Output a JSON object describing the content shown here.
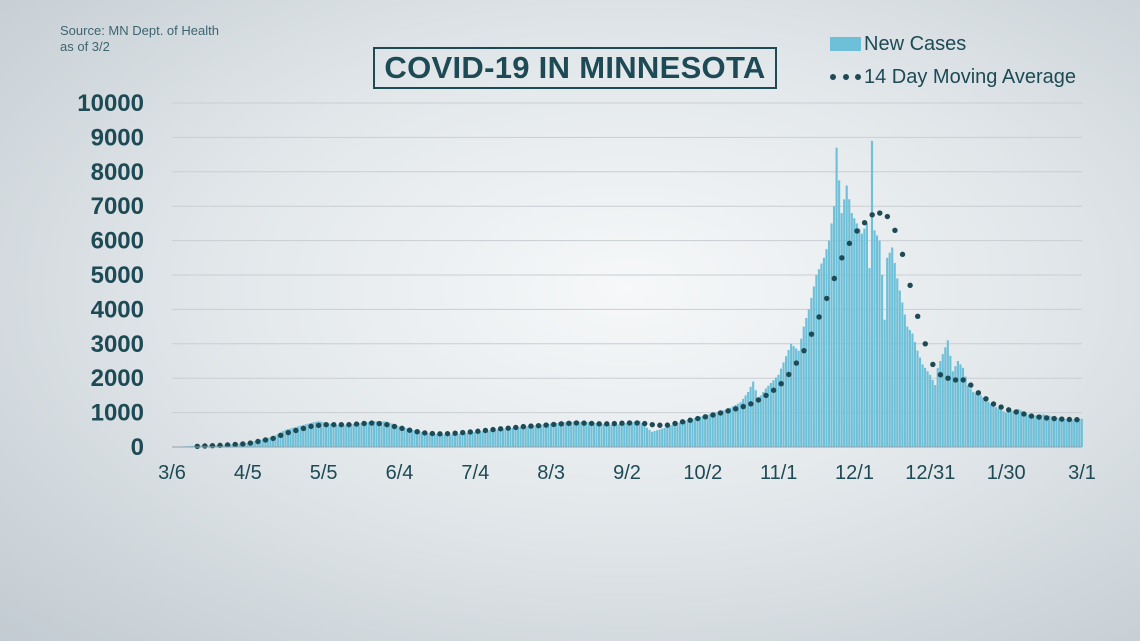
{
  "source": {
    "line1": "Source: MN Dept. of Health",
    "line2": "as of 3/2"
  },
  "title": "COVID-19 IN MINNESOTA",
  "legend": {
    "bars": "New Cases",
    "line": "14 Day Moving Average"
  },
  "colors": {
    "bars": "#6ec0d8",
    "line": "#1d4a55",
    "axis_text": "#1d4a55",
    "grid": "#c9ced2"
  },
  "chart_data": {
    "type": "bar",
    "title": "COVID-19 IN MINNESOTA",
    "xlabel": "",
    "ylabel": "",
    "ylim": [
      0,
      10000
    ],
    "yticks": [
      0,
      1000,
      2000,
      3000,
      4000,
      5000,
      6000,
      7000,
      8000,
      9000,
      10000
    ],
    "grid": true,
    "legend_position": "top-right",
    "x_start": "3/6",
    "x_end": "3/1",
    "xtick_labels": [
      "3/6",
      "4/5",
      "5/5",
      "6/4",
      "7/4",
      "8/3",
      "9/2",
      "10/2",
      "11/1",
      "12/1",
      "12/31",
      "1/30",
      "3/1"
    ],
    "series": [
      {
        "name": "New Cases",
        "type": "bar",
        "values": [
          [
            0,
            0
          ],
          [
            10,
            40
          ],
          [
            20,
            60
          ],
          [
            30,
            120
          ],
          [
            40,
            300
          ],
          [
            45,
            500
          ],
          [
            50,
            600
          ],
          [
            55,
            700
          ],
          [
            58,
            750
          ],
          [
            60,
            720
          ],
          [
            65,
            640
          ],
          [
            70,
            650
          ],
          [
            75,
            700
          ],
          [
            80,
            750
          ],
          [
            85,
            740
          ],
          [
            90,
            600
          ],
          [
            95,
            500
          ],
          [
            100,
            420
          ],
          [
            105,
            380
          ],
          [
            110,
            360
          ],
          [
            115,
            400
          ],
          [
            120,
            440
          ],
          [
            125,
            480
          ],
          [
            130,
            520
          ],
          [
            135,
            560
          ],
          [
            140,
            600
          ],
          [
            145,
            640
          ],
          [
            150,
            680
          ],
          [
            155,
            720
          ],
          [
            160,
            740
          ],
          [
            165,
            720
          ],
          [
            170,
            680
          ],
          [
            175,
            640
          ],
          [
            180,
            700
          ],
          [
            185,
            760
          ],
          [
            188,
            560
          ],
          [
            190,
            440
          ],
          [
            195,
            560
          ],
          [
            200,
            700
          ],
          [
            205,
            800
          ],
          [
            210,
            900
          ],
          [
            215,
            1000
          ],
          [
            220,
            1100
          ],
          [
            225,
            1300
          ],
          [
            228,
            1600
          ],
          [
            230,
            1900
          ],
          [
            232,
            1400
          ],
          [
            235,
            1700
          ],
          [
            240,
            2100
          ],
          [
            245,
            3000
          ],
          [
            248,
            2800
          ],
          [
            250,
            3500
          ],
          [
            252,
            4000
          ],
          [
            255,
            5000
          ],
          [
            258,
            5500
          ],
          [
            260,
            6000
          ],
          [
            262,
            7000
          ],
          [
            263,
            8700
          ],
          [
            265,
            6800
          ],
          [
            267,
            7600
          ],
          [
            269,
            6800
          ],
          [
            271,
            6500
          ],
          [
            273,
            6200
          ],
          [
            275,
            6500
          ],
          [
            276,
            5200
          ],
          [
            277,
            8900
          ],
          [
            278,
            6300
          ],
          [
            280,
            6000
          ],
          [
            281,
            5000
          ],
          [
            282,
            3700
          ],
          [
            283,
            5500
          ],
          [
            285,
            5800
          ],
          [
            287,
            4900
          ],
          [
            289,
            4200
          ],
          [
            291,
            3500
          ],
          [
            293,
            3300
          ],
          [
            295,
            2800
          ],
          [
            297,
            2400
          ],
          [
            300,
            2100
          ],
          [
            302,
            1800
          ],
          [
            303,
            2300
          ],
          [
            305,
            2700
          ],
          [
            307,
            3100
          ],
          [
            309,
            2200
          ],
          [
            311,
            2500
          ],
          [
            313,
            2300
          ],
          [
            315,
            1800
          ],
          [
            317,
            1600
          ],
          [
            320,
            1500
          ],
          [
            325,
            1200
          ],
          [
            330,
            1000
          ],
          [
            335,
            1100
          ],
          [
            340,
            900
          ],
          [
            345,
            950
          ],
          [
            350,
            850
          ],
          [
            355,
            800
          ],
          [
            360,
            820
          ]
        ]
      },
      {
        "name": "14 Day Moving Average",
        "type": "line",
        "style": "dotted",
        "values": [
          [
            0,
            0
          ],
          [
            10,
            20
          ],
          [
            20,
            50
          ],
          [
            30,
            100
          ],
          [
            40,
            250
          ],
          [
            45,
            400
          ],
          [
            50,
            500
          ],
          [
            55,
            600
          ],
          [
            60,
            650
          ],
          [
            65,
            650
          ],
          [
            70,
            650
          ],
          [
            75,
            680
          ],
          [
            80,
            700
          ],
          [
            85,
            650
          ],
          [
            90,
            560
          ],
          [
            95,
            470
          ],
          [
            100,
            410
          ],
          [
            105,
            380
          ],
          [
            110,
            390
          ],
          [
            115,
            420
          ],
          [
            120,
            450
          ],
          [
            125,
            490
          ],
          [
            130,
            530
          ],
          [
            135,
            560
          ],
          [
            140,
            600
          ],
          [
            145,
            620
          ],
          [
            150,
            650
          ],
          [
            155,
            680
          ],
          [
            160,
            700
          ],
          [
            165,
            690
          ],
          [
            170,
            670
          ],
          [
            175,
            680
          ],
          [
            180,
            700
          ],
          [
            185,
            700
          ],
          [
            190,
            650
          ],
          [
            195,
            620
          ],
          [
            200,
            700
          ],
          [
            205,
            780
          ],
          [
            210,
            860
          ],
          [
            215,
            950
          ],
          [
            220,
            1050
          ],
          [
            225,
            1150
          ],
          [
            230,
            1280
          ],
          [
            235,
            1500
          ],
          [
            240,
            1750
          ],
          [
            245,
            2200
          ],
          [
            250,
            2800
          ],
          [
            255,
            3600
          ],
          [
            260,
            4500
          ],
          [
            265,
            5500
          ],
          [
            270,
            6200
          ],
          [
            275,
            6600
          ],
          [
            277,
            6750
          ],
          [
            280,
            6800
          ],
          [
            283,
            6700
          ],
          [
            286,
            6300
          ],
          [
            289,
            5600
          ],
          [
            292,
            4700
          ],
          [
            295,
            3800
          ],
          [
            298,
            3000
          ],
          [
            301,
            2400
          ],
          [
            304,
            2100
          ],
          [
            307,
            2000
          ],
          [
            310,
            1950
          ],
          [
            313,
            1950
          ],
          [
            316,
            1800
          ],
          [
            320,
            1500
          ],
          [
            325,
            1250
          ],
          [
            330,
            1100
          ],
          [
            335,
            1000
          ],
          [
            340,
            900
          ],
          [
            345,
            850
          ],
          [
            350,
            820
          ],
          [
            355,
            800
          ],
          [
            360,
            790
          ]
        ]
      }
    ]
  }
}
